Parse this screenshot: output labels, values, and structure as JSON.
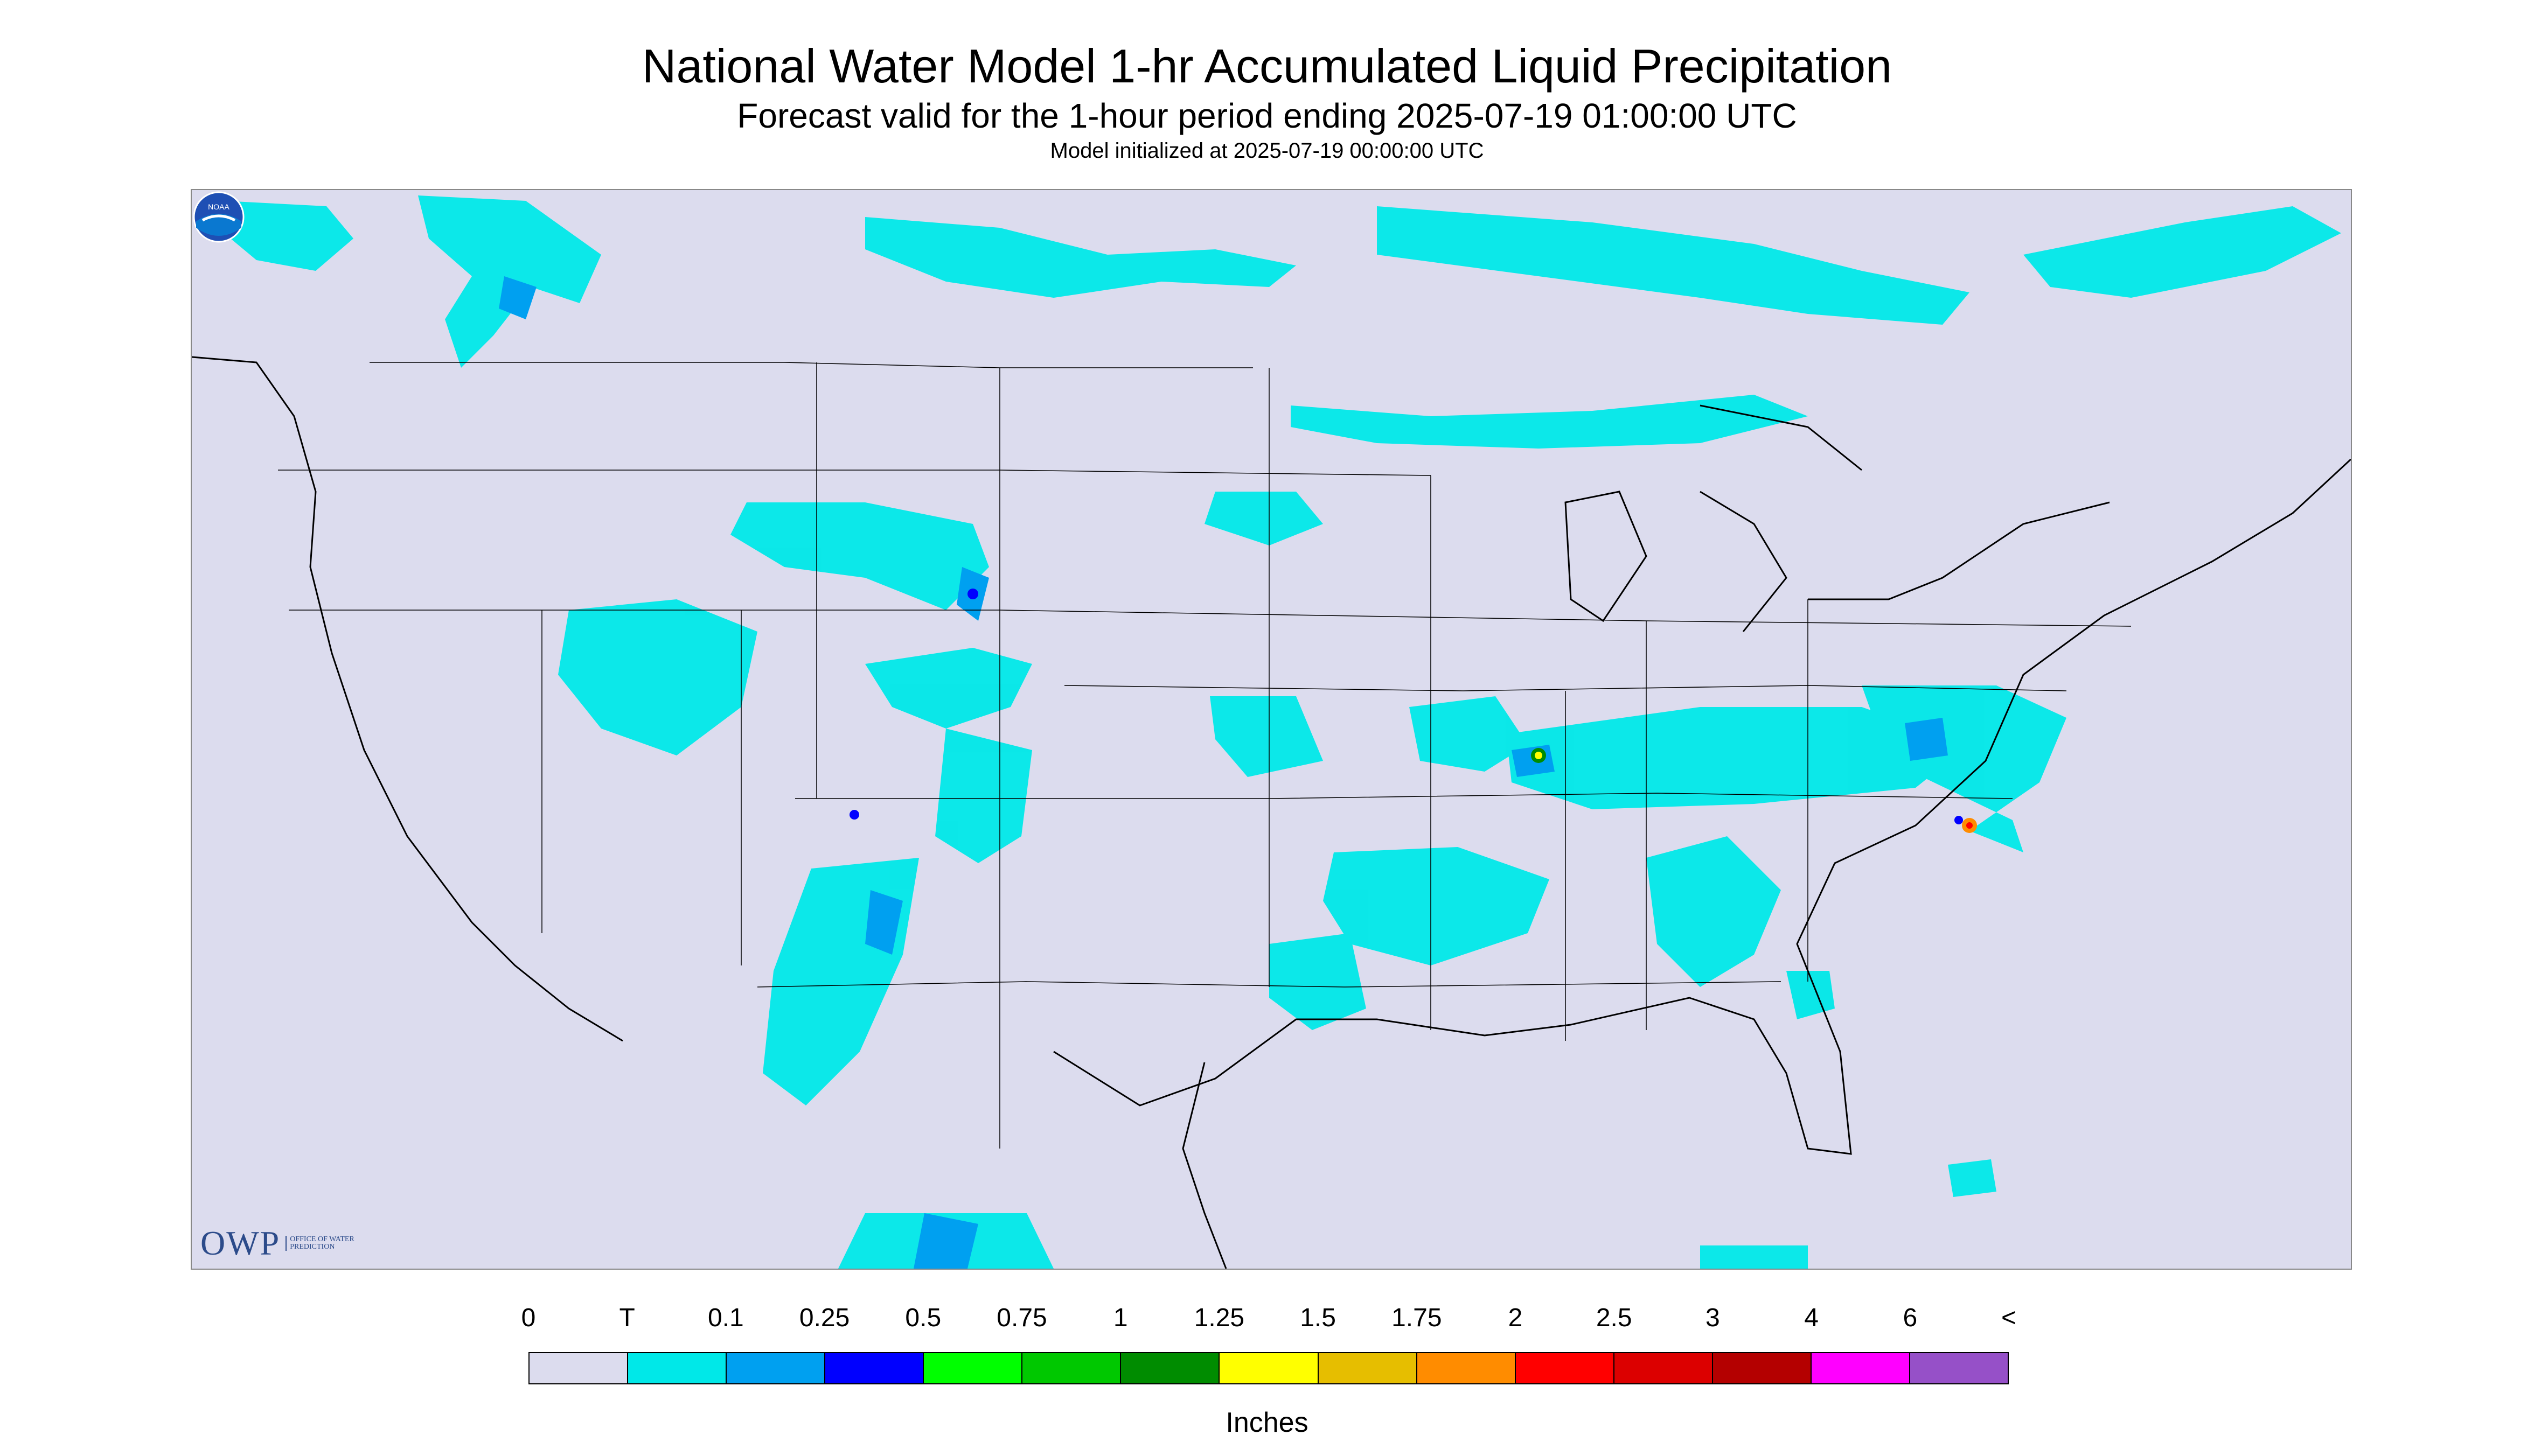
{
  "title": "National Water Model 1-hr Accumulated Liquid Precipitation",
  "subtitle": "Forecast valid for the 1-hour period ending 2025-07-19 01:00:00 UTC",
  "init_line": "Model initialized at 2025-07-19 00:00:00 UTC",
  "logos": {
    "owp_text": "OWP",
    "owp_sub": "OFFICE OF WATER PREDICTION",
    "noaa_text": "NOAA"
  },
  "legend": {
    "labels": [
      "0",
      "T",
      "0.1",
      "0.25",
      "0.5",
      "0.75",
      "1",
      "1.25",
      "1.5",
      "1.75",
      "2",
      "2.5",
      "3",
      "4",
      "6",
      "<"
    ],
    "colors": [
      "#dcdcee",
      "#00e8e8",
      "#00a0f0",
      "#0000ff",
      "#00ff00",
      "#00c800",
      "#008c00",
      "#ffff00",
      "#e6be00",
      "#ff8c00",
      "#ff0000",
      "#dc0000",
      "#b40000",
      "#ff00ff",
      "#9650c8"
    ],
    "units": "Inches"
  },
  "map_colors": {
    "background": "#dcdcee",
    "trace": "#00e8e8",
    "light": "#00a0f0",
    "moderate": "#0000ff",
    "boundary": "#000000"
  }
}
